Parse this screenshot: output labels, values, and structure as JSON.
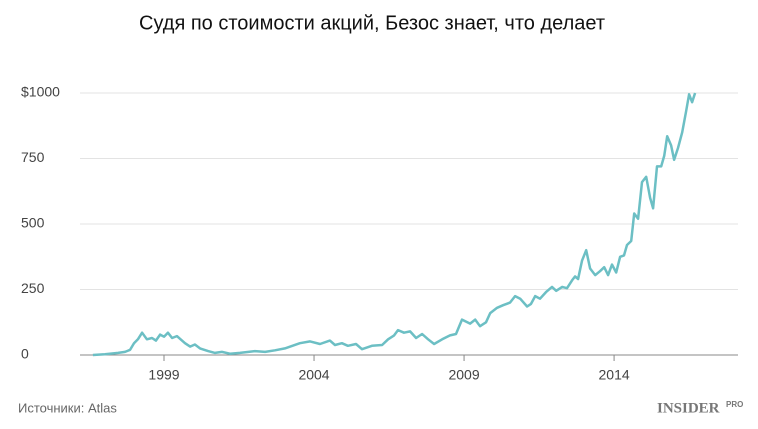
{
  "chart_data": {
    "type": "line",
    "title": "Судя по стоимости акций, Безос знает, что делает",
    "source": "Источники: Atlas",
    "brand": "INSIDER",
    "brand_suffix": "PRO",
    "xlim": [
      1996.2,
      2018.13
    ],
    "xticks": [
      1999,
      2004,
      2009,
      2014
    ],
    "ylim": [
      0,
      1000
    ],
    "yticks": [
      0,
      250,
      500,
      750,
      {
        "value": 1000,
        "label": "$1000"
      }
    ],
    "grid": true,
    "series": [
      {
        "color": "#6cbfc4",
        "x": [
          1996.63,
          1997.03,
          1997.47,
          1997.7,
          1997.87,
          1998.0,
          1998.13,
          1998.27,
          1998.43,
          1998.6,
          1998.73,
          1998.87,
          1999.0,
          1999.13,
          1999.27,
          1999.43,
          1999.7,
          1999.87,
          2000.03,
          2000.2,
          2000.47,
          2000.7,
          2000.93,
          2001.2,
          2001.53,
          2002.03,
          2002.37,
          2002.7,
          2003.03,
          2003.53,
          2003.87,
          2004.2,
          2004.53,
          2004.7,
          2004.93,
          2005.13,
          2005.4,
          2005.6,
          2005.93,
          2006.27,
          2006.47,
          2006.67,
          2006.8,
          2007.0,
          2007.2,
          2007.4,
          2007.6,
          2007.8,
          2008.0,
          2008.27,
          2008.53,
          2008.73,
          2008.93,
          2009.2,
          2009.37,
          2009.53,
          2009.73,
          2009.87,
          2010.1,
          2010.3,
          2010.53,
          2010.7,
          2010.87,
          2011.1,
          2011.23,
          2011.37,
          2011.53,
          2011.73,
          2011.93,
          2012.07,
          2012.27,
          2012.43,
          2012.6,
          2012.7,
          2012.8,
          2012.93,
          2013.07,
          2013.2,
          2013.37,
          2013.53,
          2013.67,
          2013.8,
          2013.93,
          2014.07,
          2014.2,
          2014.33,
          2014.43,
          2014.57,
          2014.67,
          2014.8,
          2014.93,
          2015.07,
          2015.2,
          2015.3,
          2015.43,
          2015.57,
          2015.67,
          2015.77,
          2015.9,
          2016.0,
          2016.13,
          2016.27,
          2016.4,
          2016.5,
          2016.6,
          2016.7
        ],
        "values": [
          0,
          3,
          8,
          12,
          20,
          45,
          60,
          85,
          60,
          65,
          55,
          78,
          70,
          85,
          65,
          72,
          45,
          32,
          40,
          25,
          15,
          8,
          12,
          5,
          8,
          15,
          12,
          18,
          25,
          45,
          52,
          42,
          55,
          38,
          45,
          35,
          42,
          22,
          35,
          38,
          60,
          75,
          95,
          85,
          90,
          65,
          80,
          60,
          42,
          60,
          75,
          80,
          135,
          120,
          135,
          110,
          125,
          160,
          180,
          190,
          200,
          225,
          215,
          185,
          195,
          225,
          215,
          240,
          260,
          245,
          260,
          255,
          285,
          300,
          290,
          360,
          400,
          330,
          305,
          320,
          335,
          305,
          345,
          315,
          375,
          380,
          420,
          435,
          540,
          520,
          660,
          680,
          600,
          560,
          720,
          720,
          760,
          835,
          800,
          745,
          790,
          850,
          930,
          995,
          965,
          1000
        ]
      }
    ]
  }
}
